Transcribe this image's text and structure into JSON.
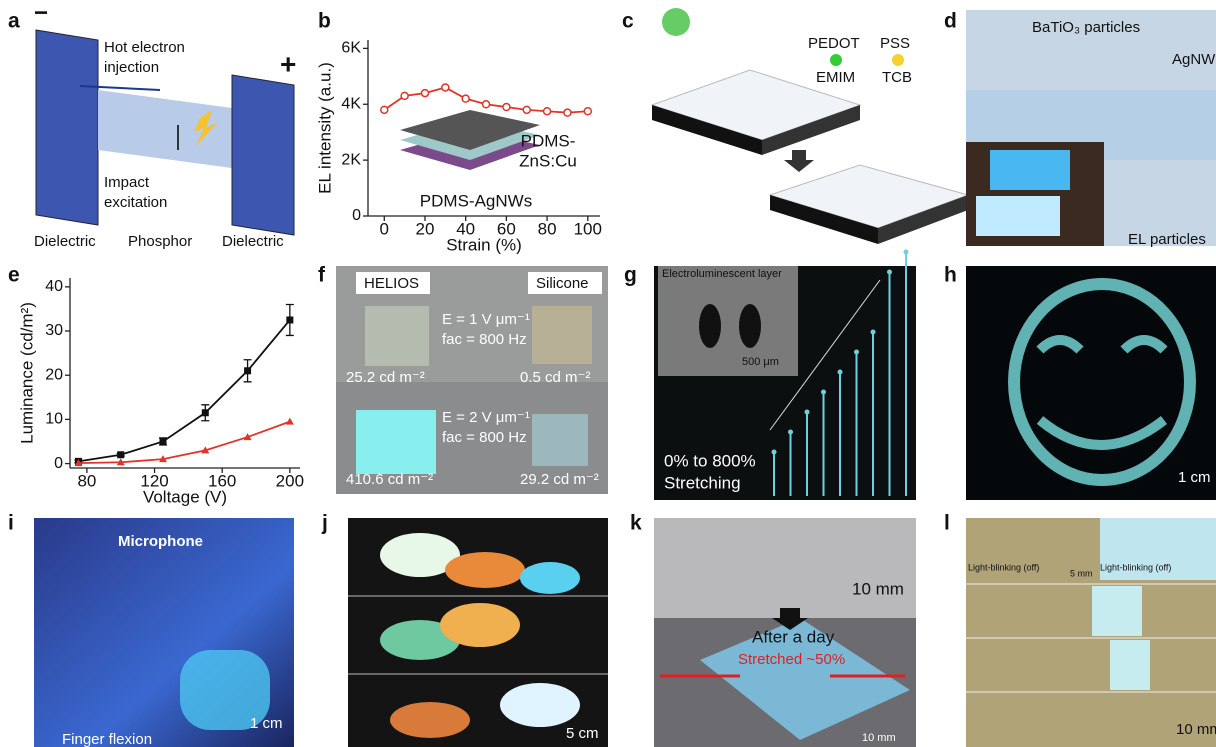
{
  "panels": {
    "labels": [
      "a",
      "b",
      "c",
      "d",
      "e",
      "f",
      "g",
      "h",
      "i",
      "j",
      "k",
      "l"
    ],
    "a": {
      "minus": "−",
      "plus": "+",
      "hot1": "Hot electron",
      "hot2": "injection",
      "imp1": "Impact",
      "imp2": "excitation",
      "d1": "Dielectric",
      "ph": "Phosphor",
      "d2": "Dielectric"
    },
    "c": {
      "pedot": "PEDOT",
      "pss": "PSS",
      "emim": "EMIM",
      "tcb": "TCB"
    },
    "d": {
      "bto": "BaTiO₃ particles",
      "ag": "AgNWs",
      "el": "EL particles"
    },
    "f": {
      "h": "HELIOS",
      "s": "Silicone",
      "e1": "E = 1 V μm⁻¹",
      "f1": "fac = 800 Hz",
      "l1": "25.2 cd m⁻²",
      "l2": "0.5 cd m⁻²",
      "e2": "E = 2 V μm⁻¹",
      "f2": "fac = 800 Hz",
      "l3": "410.6 cd m⁻²",
      "l4": "29.2 cd m⁻²"
    },
    "g": {
      "layer": "Electroluminescent layer",
      "scale": "500 μm",
      "s1": "0% to 800%",
      "s2": "Stretching"
    },
    "h": {
      "scale": "1 cm"
    },
    "i": {
      "mic": "Microphone",
      "scale": "1 cm",
      "finger": "Finger flexion"
    },
    "j": {
      "scale": "5 cm"
    },
    "k": {
      "s1": "10 mm",
      "day": "After a day",
      "str": "Stretched ~50%",
      "s2": "10 mm"
    },
    "l": {
      "b1": "Light-blinking (off)",
      "s1": "5 mm",
      "b2": "Light-blinking (off)",
      "s2": "10 mm"
    }
  },
  "chart_data": [
    {
      "type": "line",
      "x_label": "Strain (%)",
      "y_label": "EL intensity (a.u.)",
      "x": [
        0,
        10,
        20,
        30,
        40,
        50,
        60,
        70,
        80,
        90,
        100
      ],
      "series": [
        {
          "name": "EL intensity",
          "color": "#e0342a",
          "values": [
            3800,
            4300,
            4400,
            4600,
            4200,
            4000,
            3900,
            3800,
            3750,
            3700,
            3750
          ]
        }
      ],
      "xlim": [
        -8,
        106
      ],
      "ylim": [
        0,
        6300
      ],
      "xticks": [
        0,
        20,
        40,
        60,
        80,
        100
      ],
      "yticks": [
        0,
        {
          "value": 2000,
          "label": "2K"
        },
        {
          "value": 4000,
          "label": "4K"
        },
        {
          "value": 6000,
          "label": "6K"
        }
      ],
      "annotations": [
        "PDMS-",
        "ZnS:Cu",
        "PDMS-AgNWs"
      ]
    },
    {
      "type": "line",
      "x_label": "Voltage (V)",
      "y_label": "Luminance (cd/m²)",
      "x": [
        75,
        100,
        125,
        150,
        175,
        200
      ],
      "series": [
        {
          "name": "HELIOS",
          "color": "#111111",
          "marker": "square",
          "values": [
            0.5,
            2,
            5,
            11.5,
            21,
            32.5
          ],
          "errors": [
            0.3,
            0.3,
            0.8,
            1.8,
            2.5,
            3.5
          ]
        },
        {
          "name": "Silicone",
          "color": "#e0342a",
          "marker": "triangle",
          "values": [
            0.1,
            0.3,
            1,
            3,
            6,
            9.5
          ]
        }
      ],
      "xlim": [
        70,
        206
      ],
      "ylim": [
        -1,
        42
      ],
      "xticks": [
        80,
        120,
        160,
        200
      ],
      "yticks": [
        0,
        10,
        20,
        30,
        40
      ]
    }
  ]
}
